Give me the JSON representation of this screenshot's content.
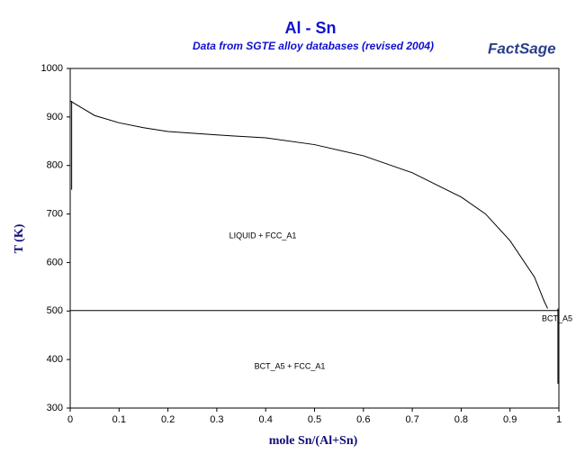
{
  "chart_data": {
    "type": "line",
    "title": "Al - Sn",
    "subtitle": "Data from SGTE alloy databases (revised 2004)",
    "logo": "FactSage",
    "x_label": "mole Sn/(Al+Sn)",
    "y_label": "T (K)",
    "xlim": [
      0,
      1
    ],
    "ylim": [
      300,
      1000
    ],
    "xticks": [
      0,
      0.1,
      0.2,
      0.3,
      0.4,
      0.5,
      0.6,
      0.7,
      0.8,
      0.9,
      1
    ],
    "yticks": [
      300,
      400,
      500,
      600,
      700,
      800,
      900,
      1000
    ],
    "series": [
      {
        "color": "#000000",
        "x": [
          0,
          0.05,
          0.1,
          0.15,
          0.2,
          0.3,
          0.4,
          0.5,
          0.6,
          0.7,
          0.8,
          0.85,
          0.9,
          0.95,
          0.97,
          0.977
        ],
        "values": [
          933,
          903,
          888,
          878,
          870,
          863,
          857,
          843,
          820,
          785,
          735,
          700,
          645,
          570,
          520,
          505
        ]
      },
      {
        "color": "#000000",
        "x": [
          0,
          1
        ],
        "values": [
          501,
          501
        ]
      },
      {
        "color": "#000000",
        "x": [
          0.003,
          0.003
        ],
        "values": [
          933,
          750
        ]
      },
      {
        "color": "#000000",
        "x": [
          0.998,
          0.998
        ],
        "values": [
          505,
          350
        ]
      }
    ],
    "annotations": [
      "LIQUID + FCC_A1",
      "BCT_A5 + FCC_A1",
      "BCT_A5"
    ]
  }
}
